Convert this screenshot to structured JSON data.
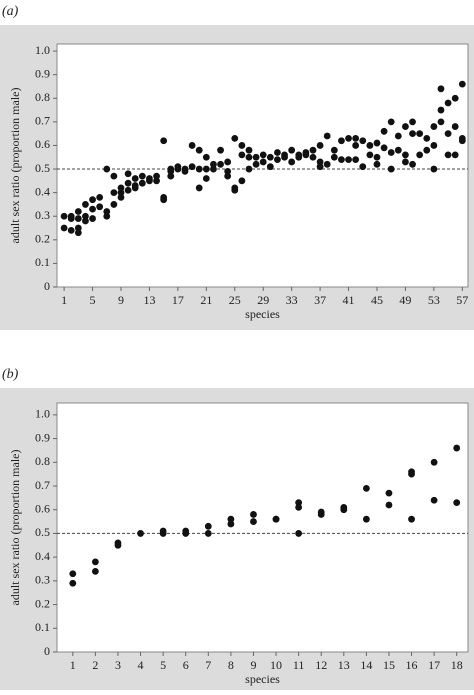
{
  "chart_data": [
    {
      "type": "scatter",
      "panel_label": "(a)",
      "y_label": "adult sex ratio (proportion male)",
      "x_label": "species",
      "color": "#111111",
      "reference_line": 0.5,
      "xlim": [
        0,
        57.8
      ],
      "xticks": [
        1,
        5,
        9,
        13,
        17,
        21,
        25,
        29,
        33,
        37,
        41,
        45,
        49,
        53,
        57
      ],
      "ylim": [
        0,
        1.03
      ],
      "yticks": [
        0,
        0.1,
        0.2,
        0.3,
        0.4,
        0.5,
        0.6,
        0.7,
        0.8,
        0.9,
        {
          "value": 1,
          "label": "1.0"
        }
      ],
      "x": [
        1,
        1,
        2,
        2,
        2,
        3,
        3,
        3,
        3,
        4,
        4,
        4,
        5,
        5,
        5,
        6,
        6,
        7,
        7,
        7,
        8,
        8,
        8,
        9,
        9,
        9,
        10,
        10,
        10,
        11,
        11,
        11,
        12,
        12,
        13,
        13,
        14,
        14,
        15,
        15,
        15,
        16,
        16,
        16,
        17,
        17,
        18,
        18,
        19,
        19,
        20,
        20,
        20,
        21,
        21,
        21,
        22,
        22,
        23,
        23,
        24,
        24,
        24,
        25,
        25,
        25,
        26,
        26,
        26,
        27,
        27,
        27,
        28,
        28,
        29,
        29,
        30,
        30,
        31,
        31,
        32,
        32,
        33,
        33,
        34,
        34,
        35,
        35,
        36,
        36,
        37,
        37,
        37,
        38,
        38,
        39,
        39,
        40,
        40,
        41,
        41,
        42,
        42,
        42,
        43,
        43,
        44,
        44,
        45,
        45,
        45,
        46,
        46,
        47,
        47,
        47,
        48,
        48,
        49,
        49,
        49,
        50,
        50,
        50,
        51,
        51,
        52,
        52,
        53,
        53,
        53,
        54,
        54,
        54,
        55,
        55,
        55,
        56,
        56,
        56,
        57,
        57,
        57
      ],
      "values": [
        0.3,
        0.25,
        0.29,
        0.24,
        0.3,
        0.32,
        0.23,
        0.25,
        0.29,
        0.35,
        0.3,
        0.28,
        0.33,
        0.37,
        0.29,
        0.34,
        0.38,
        0.5,
        0.3,
        0.32,
        0.47,
        0.4,
        0.35,
        0.4,
        0.42,
        0.38,
        0.44,
        0.48,
        0.41,
        0.43,
        0.46,
        0.42,
        0.47,
        0.44,
        0.46,
        0.45,
        0.45,
        0.47,
        0.62,
        0.38,
        0.37,
        0.49,
        0.5,
        0.47,
        0.51,
        0.5,
        0.5,
        0.49,
        0.6,
        0.51,
        0.58,
        0.42,
        0.5,
        0.55,
        0.46,
        0.5,
        0.52,
        0.5,
        0.58,
        0.52,
        0.53,
        0.49,
        0.47,
        0.63,
        0.42,
        0.41,
        0.6,
        0.45,
        0.56,
        0.58,
        0.55,
        0.5,
        0.55,
        0.52,
        0.56,
        0.53,
        0.55,
        0.51,
        0.57,
        0.54,
        0.56,
        0.55,
        0.58,
        0.53,
        0.56,
        0.55,
        0.57,
        0.56,
        0.58,
        0.55,
        0.6,
        0.53,
        0.51,
        0.64,
        0.52,
        0.58,
        0.55,
        0.62,
        0.54,
        0.63,
        0.54,
        0.63,
        0.6,
        0.54,
        0.62,
        0.51,
        0.6,
        0.56,
        0.61,
        0.55,
        0.52,
        0.66,
        0.59,
        0.7,
        0.5,
        0.57,
        0.64,
        0.58,
        0.68,
        0.56,
        0.53,
        0.7,
        0.65,
        0.52,
        0.65,
        0.56,
        0.63,
        0.58,
        0.68,
        0.6,
        0.5,
        0.84,
        0.75,
        0.7,
        0.78,
        0.56,
        0.65,
        0.8,
        0.56,
        0.68,
        0.86,
        0.62,
        0.63
      ]
    },
    {
      "type": "scatter",
      "panel_label": "(b)",
      "y_label": "adult sex ratio (proportion male)",
      "x_label": "species",
      "color": "#111111",
      "reference_line": 0.5,
      "xlim": [
        0.3,
        18.5
      ],
      "xticks": [
        1,
        2,
        3,
        4,
        5,
        6,
        7,
        8,
        9,
        10,
        11,
        12,
        13,
        14,
        15,
        16,
        17,
        18
      ],
      "ylim": [
        0,
        1.05
      ],
      "yticks": [
        0,
        0.1,
        0.2,
        0.3,
        0.4,
        0.5,
        0.6,
        0.7,
        0.8,
        0.9,
        {
          "value": 1,
          "label": "1.0"
        }
      ],
      "x": [
        1,
        1,
        2,
        2,
        3,
        3,
        4,
        5,
        5,
        6,
        6,
        7,
        7,
        8,
        8,
        9,
        9,
        10,
        10,
        11,
        11,
        11,
        12,
        12,
        13,
        13,
        14,
        14,
        15,
        15,
        16,
        16,
        16,
        17,
        17,
        18,
        18
      ],
      "values": [
        0.33,
        0.29,
        0.38,
        0.34,
        0.46,
        0.45,
        0.5,
        0.51,
        0.5,
        0.51,
        0.5,
        0.53,
        0.5,
        0.56,
        0.54,
        0.58,
        0.55,
        0.56,
        0.56,
        0.63,
        0.61,
        0.5,
        0.59,
        0.58,
        0.61,
        0.6,
        0.69,
        0.56,
        0.67,
        0.62,
        0.76,
        0.75,
        0.56,
        0.8,
        0.64,
        0.86,
        0.63
      ]
    }
  ]
}
